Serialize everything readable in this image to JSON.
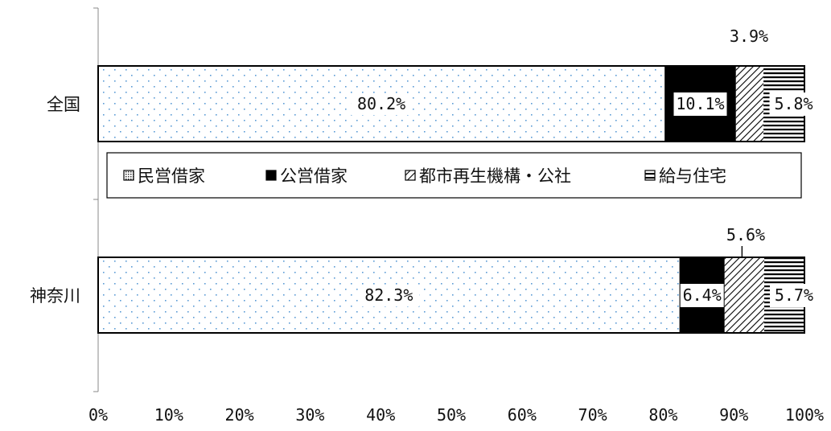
{
  "chart_data": {
    "type": "bar",
    "orientation": "horizontal",
    "stacked": true,
    "percent_stacked": true,
    "categories": [
      "全国",
      "神奈川"
    ],
    "series": [
      {
        "name": "民営借家",
        "values": [
          80.2,
          82.3
        ],
        "pattern": "dots",
        "color": "#5b9bd5"
      },
      {
        "name": "公営借家",
        "values": [
          10.1,
          6.4
        ],
        "pattern": "solid",
        "color": "#000000"
      },
      {
        "name": "都市再生機構・公社",
        "values": [
          3.9,
          5.6
        ],
        "pattern": "diagonal",
        "color": "#000000"
      },
      {
        "name": "給与住宅",
        "values": [
          5.8,
          5.7
        ],
        "pattern": "horizontal-lines",
        "color": "#000000"
      }
    ],
    "data_labels": [
      [
        "80.2%",
        "10.1%",
        "3.9%",
        "5.8%"
      ],
      [
        "82.3%",
        "6.4%",
        "5.6%",
        "5.7%"
      ]
    ],
    "x_ticks": [
      "0%",
      "10%",
      "20%",
      "30%",
      "40%",
      "50%",
      "60%",
      "70%",
      "80%",
      "90%",
      "100%"
    ],
    "xlim": [
      0,
      100
    ],
    "grid": false,
    "legend_position": "center"
  }
}
